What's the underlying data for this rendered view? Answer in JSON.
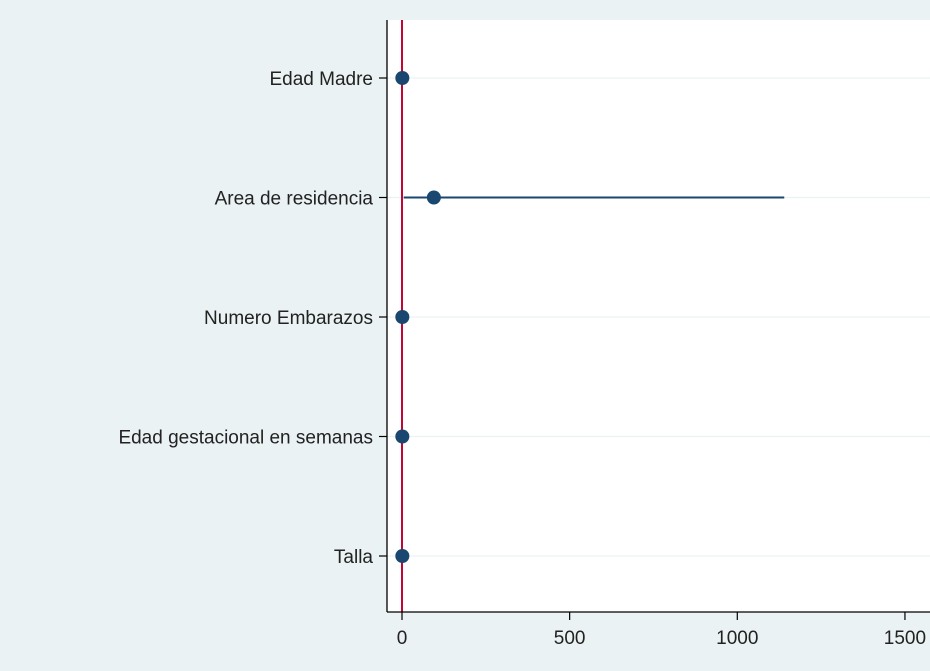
{
  "chart_data": {
    "type": "scatter",
    "subtype": "coefficient-plot",
    "categories": [
      "Edad Madre",
      "Area de residencia",
      "Numero Embarazos",
      "Edad gestacional en semanas",
      "Talla"
    ],
    "points": [
      {
        "label": "Edad Madre",
        "estimate": 1.0,
        "ci_low": 1.0,
        "ci_high": 1.0
      },
      {
        "label": "Area de residencia",
        "estimate": 95,
        "ci_low": 5,
        "ci_high": 1140
      },
      {
        "label": "Numero Embarazos",
        "estimate": 1.0,
        "ci_low": 1.0,
        "ci_high": 1.0
      },
      {
        "label": "Edad gestacional en semanas",
        "estimate": 1.0,
        "ci_low": 1.0,
        "ci_high": 1.0
      },
      {
        "label": "Talla",
        "estimate": 1.0,
        "ci_low": 1.0,
        "ci_high": 1.0
      }
    ],
    "xticks": [
      0,
      500,
      1000,
      1500
    ],
    "xtick_labels": [
      "0",
      "500",
      "1000",
      "1500"
    ],
    "xlim": [
      -45,
      1530
    ],
    "reference_line": 0,
    "title": "",
    "xlabel": "",
    "ylabel": "",
    "grid": true,
    "colors": {
      "background": "#eaf2f3",
      "plot_background": "#ffffff",
      "marker": "#1a476f",
      "ci_line": "#1a476f",
      "reference_line": "#c10534",
      "grid": "#eaf2f3",
      "axis": "#000000"
    }
  }
}
